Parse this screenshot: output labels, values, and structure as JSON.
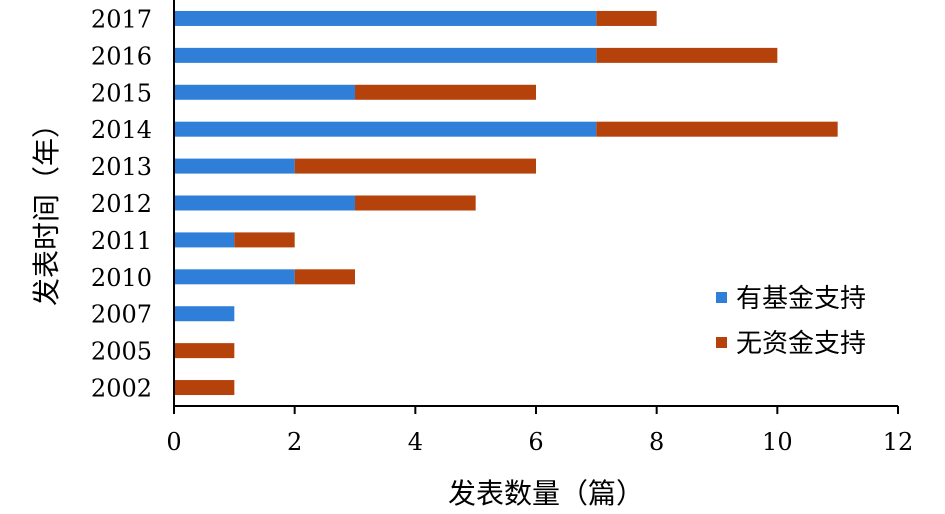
{
  "chart_data": {
    "type": "bar",
    "orientation": "horizontal",
    "stacked": true,
    "categories": [
      "2017",
      "2016",
      "2015",
      "2014",
      "2013",
      "2012",
      "2011",
      "2010",
      "2007",
      "2005",
      "2002"
    ],
    "series": [
      {
        "name": "有基金支持",
        "color": "#2f7ed8",
        "values": [
          7,
          7,
          3,
          7,
          2,
          3,
          1,
          2,
          1,
          0,
          0
        ]
      },
      {
        "name": "无资金支持",
        "color": "#b5410b",
        "values": [
          1,
          3,
          3,
          4,
          4,
          2,
          1,
          1,
          0,
          1,
          1
        ]
      }
    ],
    "title": "",
    "xlabel": "发表数量（篇）",
    "ylabel": "发表时间（年）",
    "xlim": [
      0,
      12
    ],
    "xticks": [
      "0",
      "2",
      "4",
      "6",
      "8",
      "10",
      "12"
    ],
    "grid": false,
    "legend_position": "bottom-right"
  }
}
